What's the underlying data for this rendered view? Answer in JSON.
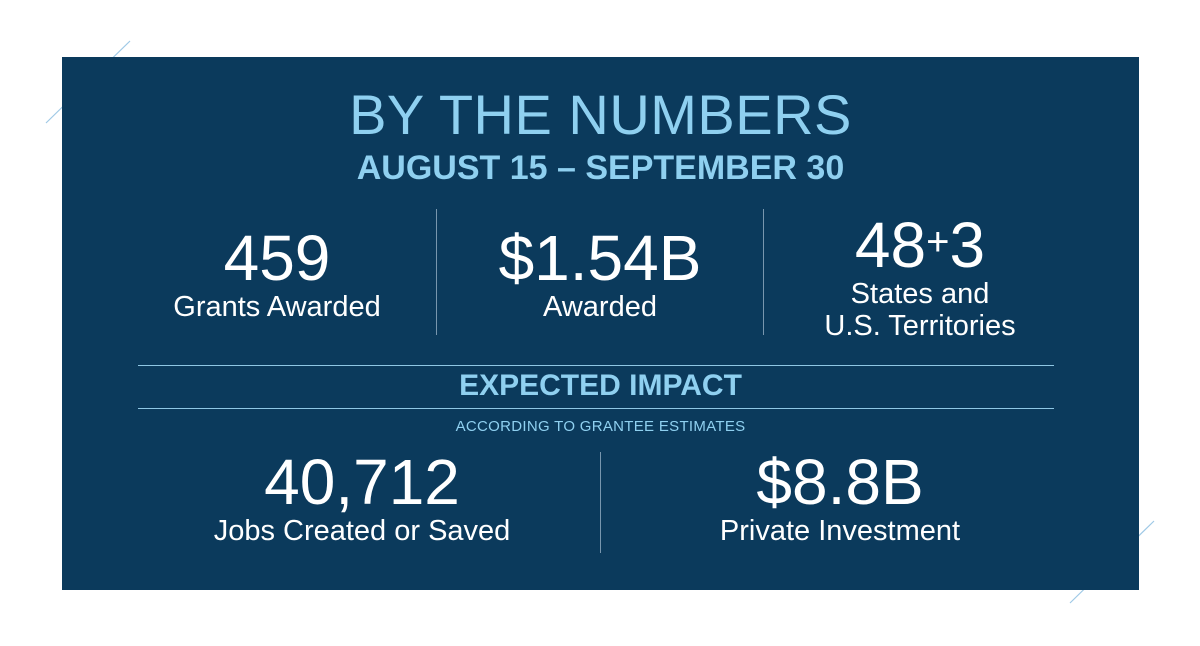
{
  "colors": {
    "panel_background": "#0b3a5c",
    "accent_light_blue": "#8fd0f0",
    "text_white": "#ffffff",
    "page_background": "#ffffff"
  },
  "header": {
    "title": "BY THE NUMBERS",
    "date_range": "AUGUST 15 – SEPTEMBER 30"
  },
  "top_stats": [
    {
      "value": "459",
      "label": "Grants Awarded"
    },
    {
      "value": "$1.54B",
      "label": "Awarded"
    },
    {
      "value_a": "48",
      "plus": "+",
      "value_b": "3",
      "label_line1": "States and",
      "label_line2": "U.S. Territories"
    }
  ],
  "impact": {
    "heading": "EXPECTED IMPACT",
    "note": "ACCORDING TO GRANTEE ESTIMATES",
    "stats": [
      {
        "value": "40,712",
        "label": "Jobs Created or Saved"
      },
      {
        "value": "$8.8B",
        "label": "Private Investment"
      }
    ]
  }
}
